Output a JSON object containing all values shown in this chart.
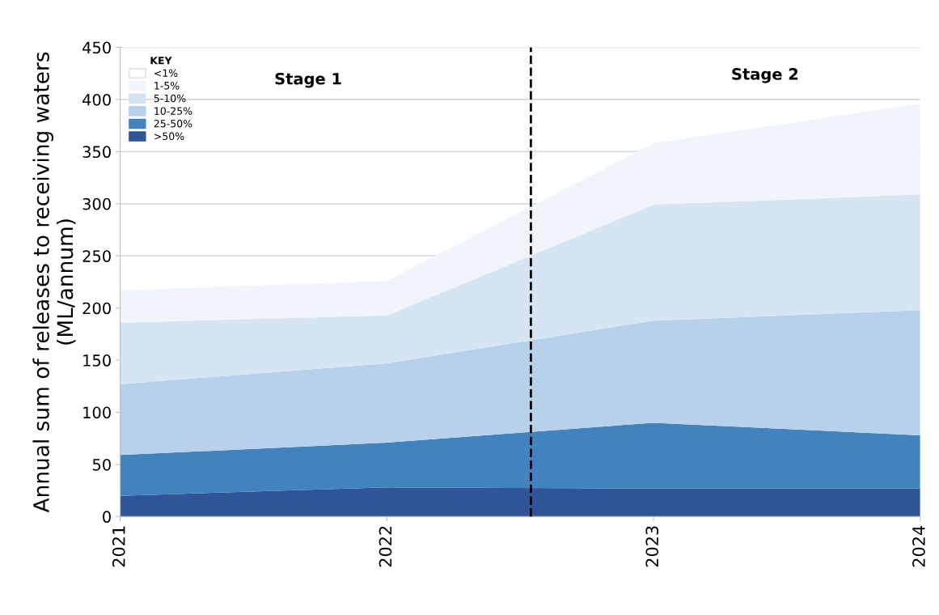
{
  "chart_data": {
    "type": "area",
    "stacked": true,
    "ylabel": "Annual sum of releases to receiving waters\n(ML/annum)",
    "x": [
      2021,
      2022,
      2023,
      2024
    ],
    "xlim": [
      2021,
      2024
    ],
    "xticks": [
      2021,
      2022,
      2023,
      2024
    ],
    "ylim": [
      0,
      450
    ],
    "yticks": [
      0,
      50,
      100,
      150,
      200,
      250,
      300,
      350,
      400,
      450
    ],
    "series": [
      {
        "name": ">50%",
        "color": "#2f5597",
        "values": [
          20,
          28,
          27,
          27
        ]
      },
      {
        "name": "25-50%",
        "color": "#4282be",
        "values": [
          39,
          43,
          63,
          51
        ]
      },
      {
        "name": "10-25%",
        "color": "#b7d1eb",
        "values": [
          68,
          76,
          98,
          120
        ]
      },
      {
        "name": "5-10%",
        "color": "#d6e5f4",
        "values": [
          59,
          46,
          111,
          111
        ]
      },
      {
        "name": "1-5%",
        "color": "#eff5fa",
        "values": [
          31,
          33,
          59,
          87
        ]
      },
      {
        "name": "<1%",
        "color": "#ffffff",
        "values": [
          null,
          null,
          null,
          null
        ]
      }
    ],
    "legend_title": "KEY",
    "legend": "top left",
    "ref_lines": [
      {
        "axis": "x",
        "value": 2022.54,
        "color": "#000000",
        "line_style": "dashed"
      }
    ],
    "annotations": [
      "Stage 1",
      "Stage 2"
    ],
    "grid": "y"
  }
}
